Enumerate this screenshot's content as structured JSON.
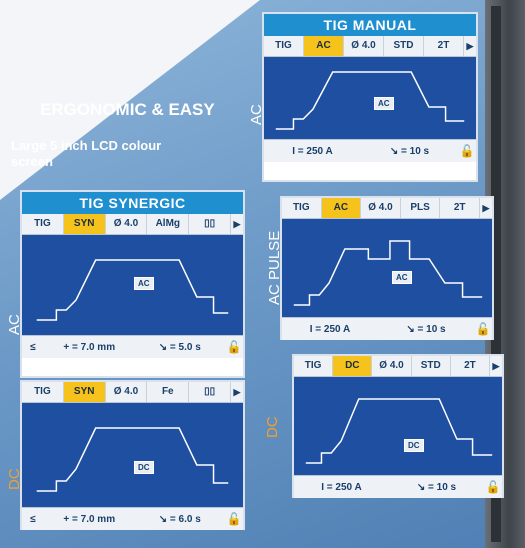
{
  "headline": "ERGONOMIC & EASY",
  "subline": "Large 5 inch LCD colour screen",
  "labels": {
    "ac_left": "AC",
    "dc_left": "DC",
    "ac_right": "AC",
    "acpulse_right": "AC PULSE",
    "dc_right": "DC"
  },
  "synergic_ac": {
    "title": "TIG SYNERGIC",
    "tabs": [
      "TIG",
      "SYN",
      "Ø 4.0",
      "AlMg",
      "▯▯",
      "▶"
    ],
    "badge": "AC",
    "footer": [
      "≤",
      "+ = 7.0 mm",
      "↘ = 5.0 s",
      "🔓"
    ]
  },
  "synergic_dc": {
    "tabs": [
      "TIG",
      "SYN",
      "Ø 4.0",
      "Fe",
      "▯▯",
      "▶"
    ],
    "badge": "DC",
    "footer": [
      "≤",
      "+ = 7.0 mm",
      "↘ = 6.0 s",
      "🔓"
    ]
  },
  "manual_ac": {
    "title": "TIG MANUAL",
    "tabs": [
      "TIG",
      "AC",
      "Ø 4.0",
      "STD",
      "2T",
      "▶"
    ],
    "badge": "AC",
    "footer": [
      "I = 250 A",
      "↘ = 10 s",
      "🔓"
    ]
  },
  "manual_acpulse": {
    "tabs": [
      "TIG",
      "AC",
      "Ø 4.0",
      "PLS",
      "2T",
      "▶"
    ],
    "badge": "AC",
    "footer": [
      "I = 250 A",
      "↘ = 10 s",
      "🔓"
    ]
  },
  "manual_dc": {
    "tabs": [
      "TIG",
      "DC",
      "Ø 4.0",
      "STD",
      "2T",
      "▶"
    ],
    "badge": "DC",
    "footer": [
      "I = 250 A",
      "↘ = 10 s",
      "🔓"
    ]
  }
}
